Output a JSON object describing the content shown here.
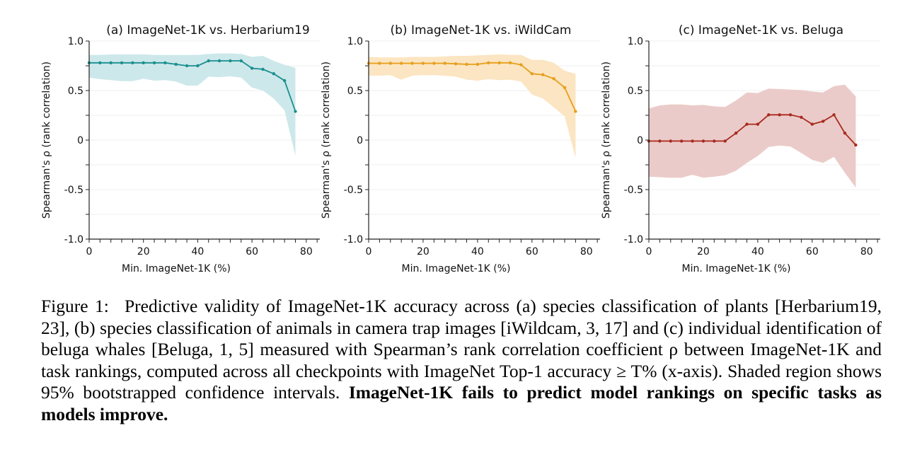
{
  "chart_data": [
    {
      "type": "line",
      "title": "(a) ImageNet-1K vs. Herbarium19",
      "xlabel": "Min. ImageNet-1K (%)",
      "ylabel": "Spearman's ρ (rank correlation)",
      "xlim": [
        0,
        85
      ],
      "ylim": [
        -1.0,
        1.0
      ],
      "xticks": [
        0,
        20,
        40,
        60,
        80
      ],
      "xtick_labels": [
        "0",
        "20",
        "40",
        "60",
        "80"
      ],
      "yticks": [
        -1.0,
        -0.5,
        0,
        0.5,
        1.0
      ],
      "ytick_labels": [
        "-1.0",
        "-0.5",
        "0",
        "0.5",
        "1.0"
      ],
      "grid": "horizontal",
      "line_color": "#1a8f8f",
      "band_color": "#cde8ea",
      "x": [
        0,
        4,
        8,
        12,
        16,
        20,
        24,
        28,
        32,
        36,
        40,
        44,
        48,
        52,
        56,
        60,
        64,
        68,
        72,
        76
      ],
      "y": [
        0.78,
        0.78,
        0.78,
        0.78,
        0.78,
        0.78,
        0.78,
        0.78,
        0.765,
        0.75,
        0.75,
        0.8,
        0.8,
        0.8,
        0.8,
        0.725,
        0.715,
        0.67,
        0.6,
        0.29
      ],
      "ci_upper": [
        0.86,
        0.86,
        0.865,
        0.865,
        0.865,
        0.865,
        0.86,
        0.86,
        0.86,
        0.86,
        0.86,
        0.87,
        0.875,
        0.875,
        0.87,
        0.84,
        0.85,
        0.8,
        0.76,
        0.73
      ],
      "ci_lower": [
        0.63,
        0.615,
        0.605,
        0.595,
        0.595,
        0.62,
        0.6,
        0.605,
        0.59,
        0.55,
        0.55,
        0.64,
        0.635,
        0.645,
        0.63,
        0.53,
        0.5,
        0.42,
        0.3,
        -0.16
      ]
    },
    {
      "type": "line",
      "title": "(b) ImageNet-1K vs. iWildCam",
      "xlabel": "Min. ImageNet-1K (%)",
      "ylabel": "Spearman's ρ (rank correlation)",
      "xlim": [
        0,
        85
      ],
      "ylim": [
        -1.0,
        1.0
      ],
      "xticks": [
        0,
        20,
        40,
        60,
        80
      ],
      "xtick_labels": [
        "0",
        "20",
        "40",
        "60",
        "80"
      ],
      "yticks": [
        -1.0,
        -0.5,
        0,
        0.5,
        1.0
      ],
      "ytick_labels": [
        "-1.0",
        "-0.5",
        "0",
        "0.5",
        "1.0"
      ],
      "grid": "horizontal",
      "line_color": "#e69f1c",
      "band_color": "#fbe5c2",
      "x": [
        0,
        4,
        8,
        12,
        16,
        20,
        24,
        28,
        32,
        36,
        40,
        44,
        48,
        52,
        56,
        60,
        64,
        68,
        72,
        76
      ],
      "y": [
        0.775,
        0.775,
        0.775,
        0.775,
        0.775,
        0.775,
        0.775,
        0.775,
        0.77,
        0.765,
        0.765,
        0.78,
        0.78,
        0.78,
        0.76,
        0.67,
        0.66,
        0.62,
        0.53,
        0.29
      ],
      "ci_upper": [
        0.84,
        0.835,
        0.835,
        0.835,
        0.84,
        0.84,
        0.84,
        0.845,
        0.85,
        0.85,
        0.855,
        0.86,
        0.865,
        0.86,
        0.86,
        0.81,
        0.81,
        0.78,
        0.7,
        0.67
      ],
      "ci_lower": [
        0.65,
        0.65,
        0.655,
        0.61,
        0.65,
        0.655,
        0.655,
        0.65,
        0.64,
        0.61,
        0.6,
        0.615,
        0.605,
        0.61,
        0.59,
        0.46,
        0.42,
        0.33,
        0.24,
        -0.18
      ]
    },
    {
      "type": "line",
      "title": "(c) ImageNet-1K vs. Beluga",
      "xlabel": "Min. ImageNet-1K (%)",
      "ylabel": "Spearman's ρ (rank correlation)",
      "xlim": [
        0,
        85
      ],
      "ylim": [
        -1.0,
        1.0
      ],
      "xticks": [
        0,
        20,
        40,
        60,
        80
      ],
      "xtick_labels": [
        "0",
        "20",
        "40",
        "60",
        "80"
      ],
      "yticks": [
        -1.0,
        -0.5,
        0,
        0.5,
        1.0
      ],
      "ytick_labels": [
        "-1.0",
        "-0.5",
        "0",
        "0.5",
        "1.0"
      ],
      "grid": "horizontal",
      "line_color": "#a82a1e",
      "band_color": "#ebcbc9",
      "x": [
        0,
        4,
        8,
        12,
        16,
        20,
        24,
        28,
        32,
        36,
        40,
        44,
        48,
        52,
        56,
        60,
        64,
        68,
        72,
        76
      ],
      "y": [
        -0.01,
        -0.01,
        -0.01,
        -0.01,
        -0.01,
        -0.01,
        -0.01,
        -0.01,
        0.07,
        0.16,
        0.16,
        0.255,
        0.255,
        0.255,
        0.23,
        0.16,
        0.19,
        0.255,
        0.07,
        -0.05
      ],
      "ci_upper": [
        0.32,
        0.35,
        0.36,
        0.36,
        0.35,
        0.355,
        0.34,
        0.335,
        0.4,
        0.48,
        0.475,
        0.52,
        0.515,
        0.51,
        0.505,
        0.49,
        0.48,
        0.545,
        0.56,
        0.44
      ],
      "ci_lower": [
        -0.37,
        -0.375,
        -0.38,
        -0.38,
        -0.35,
        -0.38,
        -0.37,
        -0.355,
        -0.31,
        -0.23,
        -0.16,
        -0.07,
        -0.055,
        -0.065,
        -0.13,
        -0.2,
        -0.23,
        -0.17,
        -0.33,
        -0.48
      ]
    }
  ],
  "caption": {
    "prefix": "Figure 1:  Predictive validity of ImageNet-1K accuracy across (a) species classification of plants [Herbarium19, 23], (b) species classification of animals in camera trap images [iWildcam, 3, 17] and (c) individual identification of beluga whales [Beluga, 1, 5] measured with Spearman’s rank correlation coefficient ρ between ImageNet-1K and task rankings, computed across all checkpoints with ImageNet Top-1 accuracy ≥ T% (x-axis). Shaded region shows 95% bootstrapped confidence intervals. ",
    "bold": "ImageNet-1K fails to predict model rankings on specific tasks as models improve."
  }
}
